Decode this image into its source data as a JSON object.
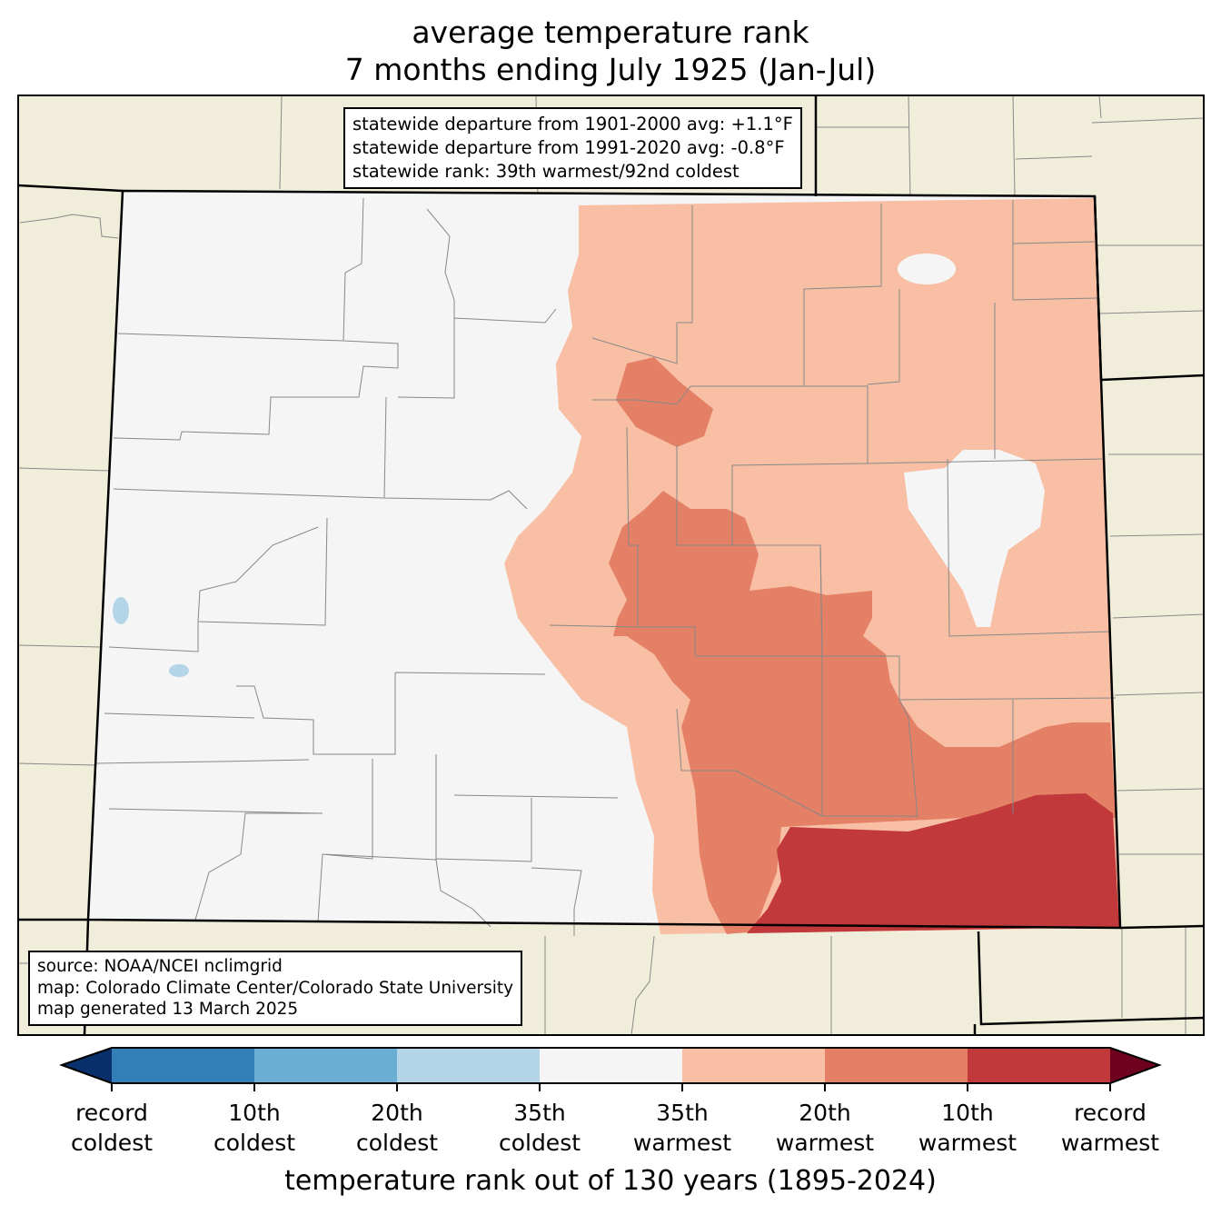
{
  "title": {
    "line1": "average temperature rank",
    "line2": "7 months ending July 1925 (Jan-Jul)"
  },
  "stats_box": {
    "line1": "statewide departure from 1901-2000 avg: +1.1°F",
    "line2": "statewide departure from 1991-2020 avg: -0.8°F",
    "line3": "statewide rank: 39th warmest/92nd coldest"
  },
  "source_box": {
    "line1": "source: NOAA/NCEI nclimgrid",
    "line2": "map: Colorado Climate Center/Colorado State University",
    "line3": "map generated 13 March 2025"
  },
  "colors": {
    "background_land": "#f0eedb",
    "record_coldest": "#08306b",
    "c10": "#327eb7",
    "c20": "#6aaed3",
    "c35": "#b3d5e7",
    "neutral": "#f5f5f5",
    "w35": "#f8bfa5",
    "w20": "#e48066",
    "w10": "#c1393a",
    "record_warmest": "#6e0020"
  },
  "colorbar": {
    "ticks": [
      {
        "l1": "record",
        "l2": "coldest"
      },
      {
        "l1": "10th",
        "l2": "coldest"
      },
      {
        "l1": "20th",
        "l2": "coldest"
      },
      {
        "l1": "35th",
        "l2": "coldest"
      },
      {
        "l1": "35th",
        "l2": "warmest"
      },
      {
        "l1": "20th",
        "l2": "warmest"
      },
      {
        "l1": "10th",
        "l2": "warmest"
      },
      {
        "l1": "record",
        "l2": "warmest"
      }
    ],
    "axis_label": "temperature rank out of 130 years (1895-2024)"
  }
}
